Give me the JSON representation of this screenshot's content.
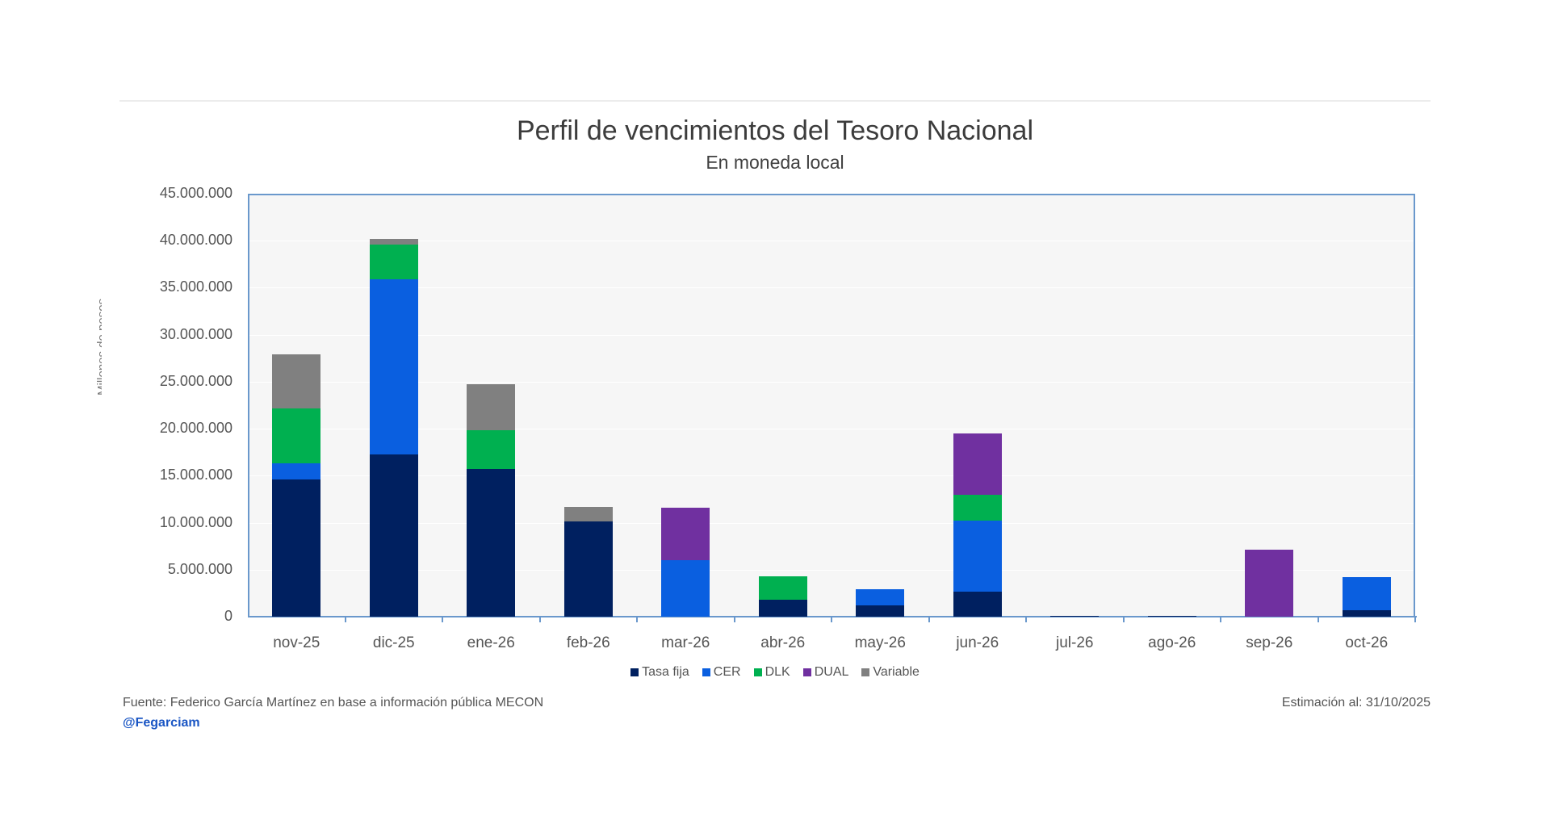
{
  "header": {
    "title": "Perfil de vencimientos del Tesoro Nacional",
    "subtitle": "En moneda local"
  },
  "axis": {
    "ylabel": "Millones de pesos",
    "yticks": [
      "45.000.000",
      "40.000.000",
      "35.000.000",
      "30.000.000",
      "25.000.000",
      "20.000.000",
      "15.000.000",
      "10.000.000",
      "5.000.000",
      "0"
    ]
  },
  "legend": [
    {
      "label": "Tasa fija",
      "color": "#002060"
    },
    {
      "label": "CER",
      "color": "#0a5fe0"
    },
    {
      "label": "DLK",
      "color": "#00b050"
    },
    {
      "label": "DUAL",
      "color": "#7030a0"
    },
    {
      "label": "Variable",
      "color": "#808080"
    }
  ],
  "footer": {
    "source": "Fuente: Federico García Martínez en base a información pública MECON",
    "handle": "@Fegarciam",
    "estimate": "Estimación al: 31/10/2025"
  },
  "chart_data": {
    "type": "bar",
    "stacked": true,
    "title": "Perfil de vencimientos del Tesoro Nacional",
    "subtitle": "En moneda local",
    "xlabel": "",
    "ylabel": "Millones de pesos",
    "ylim": [
      0,
      45000000
    ],
    "yticks_step": 5000000,
    "grid": true,
    "legend_position": "bottom",
    "categories": [
      "nov-25",
      "dic-25",
      "ene-26",
      "feb-26",
      "mar-26",
      "abr-26",
      "may-26",
      "jun-26",
      "jul-26",
      "ago-26",
      "sep-26",
      "oct-26"
    ],
    "series": [
      {
        "name": "Tasa fija",
        "color": "#002060",
        "values": [
          14600000,
          17300000,
          15700000,
          10100000,
          0,
          1800000,
          1200000,
          2700000,
          100000,
          100000,
          0,
          700000
        ]
      },
      {
        "name": "CER",
        "color": "#0a5fe0",
        "values": [
          1700000,
          18600000,
          0,
          0,
          6000000,
          0,
          1700000,
          7500000,
          0,
          0,
          0,
          3500000
        ]
      },
      {
        "name": "DLK",
        "color": "#00b050",
        "values": [
          5900000,
          3700000,
          4100000,
          0,
          0,
          2500000,
          0,
          2800000,
          0,
          0,
          0,
          0
        ]
      },
      {
        "name": "DUAL",
        "color": "#7030a0",
        "values": [
          0,
          0,
          0,
          0,
          5600000,
          0,
          0,
          6500000,
          0,
          0,
          7100000,
          0
        ]
      },
      {
        "name": "Variable",
        "color": "#808080",
        "values": [
          5700000,
          600000,
          4900000,
          1600000,
          0,
          0,
          0,
          0,
          0,
          0,
          0,
          0
        ]
      }
    ]
  }
}
